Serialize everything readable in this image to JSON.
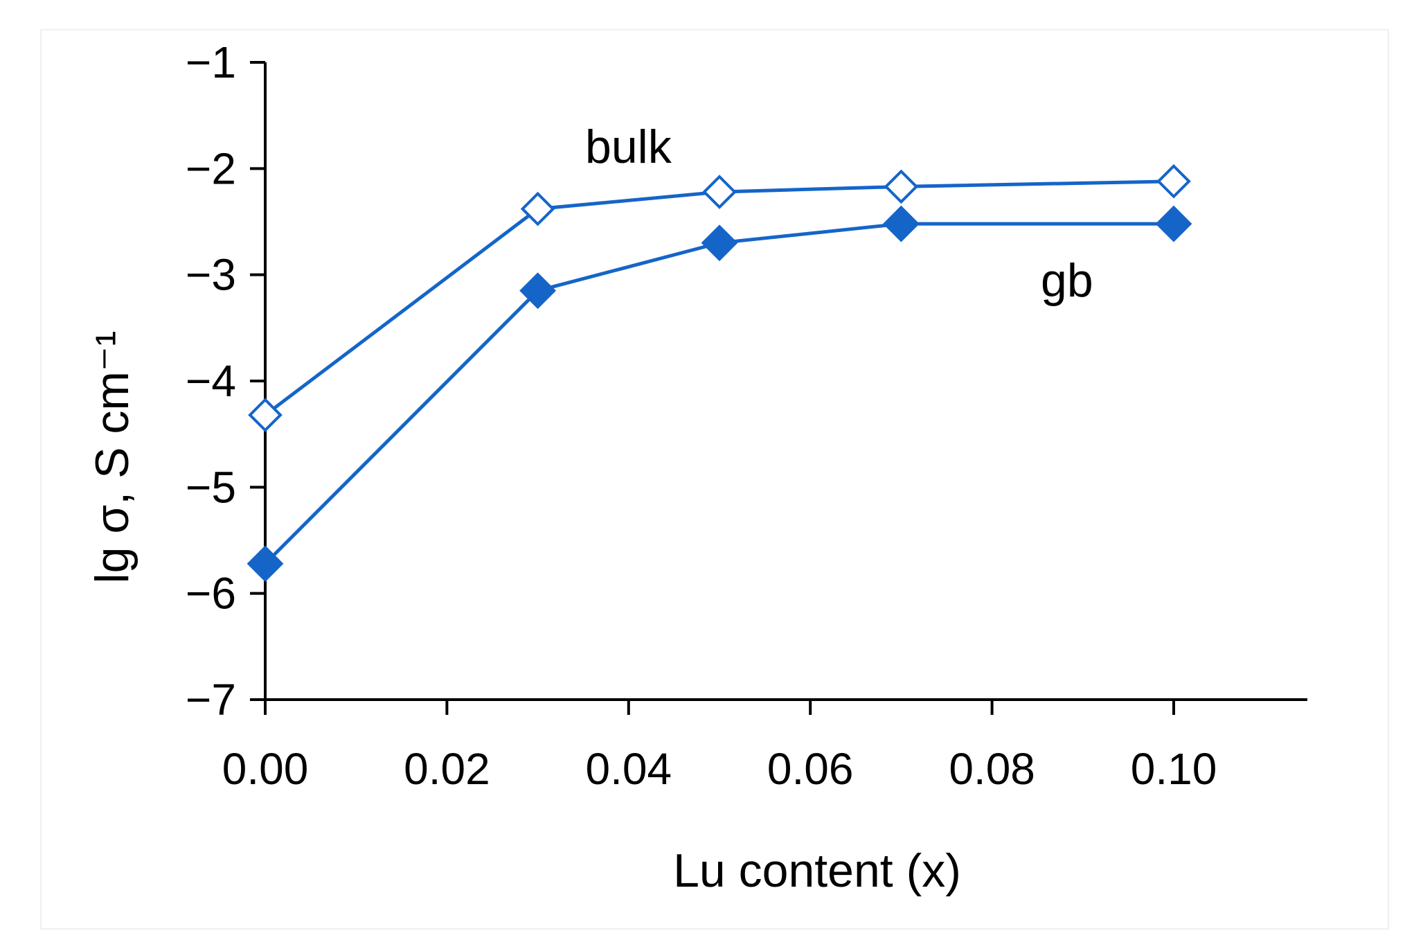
{
  "chart_data": {
    "type": "line",
    "title": "",
    "xlabel": "Lu content  (x)",
    "ylabel": "lg σ, S cm⁻¹",
    "xlim": [
      0,
      0.115
    ],
    "ylim": [
      -7,
      -1
    ],
    "xticks": [
      "0.00",
      "0.02",
      "0.04",
      "0.06",
      "0.08",
      "0.10"
    ],
    "yticks": [
      "−1",
      "−2",
      "−3",
      "−4",
      "−5",
      "−6",
      "−7"
    ],
    "x": [
      0.0,
      0.03,
      0.05,
      0.07,
      0.1
    ],
    "series": [
      {
        "name": "bulk",
        "marker": "open-diamond",
        "color": "#1565c8",
        "values": [
          -4.32,
          -2.38,
          -2.22,
          -2.17,
          -2.12
        ]
      },
      {
        "name": "gb",
        "marker": "filled-diamond",
        "color": "#1565c8",
        "values": [
          -5.72,
          -3.15,
          -2.7,
          -2.52,
          -2.52
        ]
      }
    ],
    "annotations": [
      "bulk",
      "gb"
    ],
    "grid": false,
    "legend": "none"
  }
}
